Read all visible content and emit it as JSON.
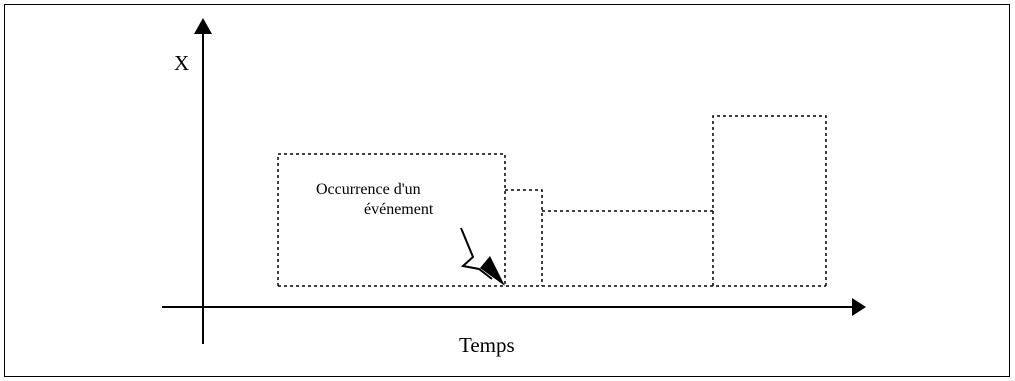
{
  "diagram": {
    "y_axis_label": "X",
    "x_axis_label": "Temps",
    "annotation_line1": "Occurrence d'un",
    "annotation_line2": "événement"
  },
  "colors": {
    "line": "#000000",
    "background": "#ffffff"
  },
  "icons": {
    "event_marker": "lightning-arrow-icon"
  }
}
